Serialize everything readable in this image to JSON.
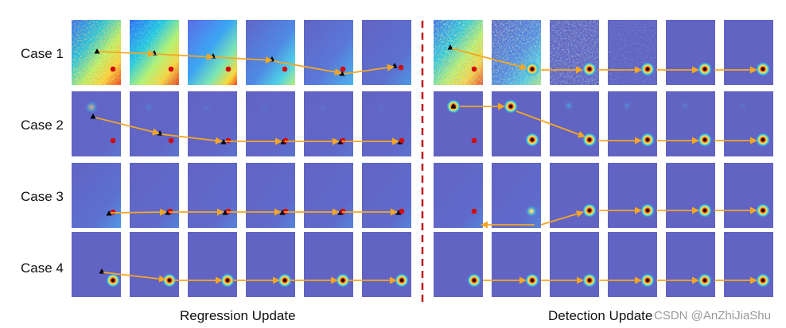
{
  "rows": [
    {
      "label": "Case 1"
    },
    {
      "label": "Case 2"
    },
    {
      "label": "Case 3"
    },
    {
      "label": "Case 4"
    }
  ],
  "sections": {
    "regression": "Regression Update",
    "detection": "Detection Update"
  },
  "watermark": "CSDN @AnZhiJiaShu",
  "legend_colors": {
    "target": "#d40a0a",
    "prediction": "#000000",
    "arrow": "#f5a623",
    "divider": "#c0191b",
    "background": "#6264c4"
  }
}
